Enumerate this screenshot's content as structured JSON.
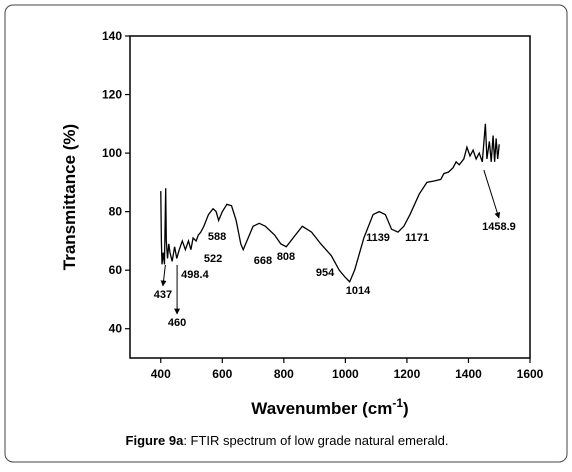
{
  "chart_data": {
    "type": "line",
    "xlabel": "Wavenumber (cm",
    "xlabel_sup": "-1",
    "xlabel_end": ")",
    "ylabel": "Transmittance (%)",
    "caption_label": "Figure 9a",
    "caption_text": ": FTIR spectrum of low grade natural emerald.",
    "xlim": [
      300,
      1600
    ],
    "ylim": [
      30,
      140
    ],
    "xticks": [
      400,
      600,
      800,
      1000,
      1200,
      1400,
      1600
    ],
    "yticks": [
      40,
      60,
      80,
      100,
      120,
      140
    ],
    "series": [
      {
        "color": "#000000",
        "x": [
          400,
          402,
          404,
          408,
          412,
          416,
          418,
          422,
          426,
          430,
          437,
          445,
          452,
          460,
          470,
          480,
          490,
          498,
          505,
          515,
          522,
          530,
          540,
          555,
          570,
          580,
          588,
          600,
          615,
          630,
          645,
          660,
          668,
          680,
          700,
          720,
          740,
          770,
          790,
          808,
          830,
          860,
          890,
          920,
          954,
          980,
          1000,
          1014,
          1030,
          1060,
          1090,
          1110,
          1130,
          1150,
          1171,
          1190,
          1210,
          1240,
          1265,
          1290,
          1310,
          1320,
          1335,
          1350,
          1360,
          1370,
          1385,
          1395,
          1405,
          1415,
          1425,
          1435,
          1445,
          1455,
          1460,
          1468,
          1474,
          1480,
          1485,
          1490,
          1495,
          1500
        ],
        "values": [
          87,
          70,
          62,
          66,
          62,
          88,
          70,
          64,
          69,
          66,
          63,
          68,
          64,
          67,
          70,
          67,
          70,
          67,
          71,
          70,
          72,
          73,
          75,
          79,
          81,
          80,
          77,
          80,
          82.5,
          82,
          77,
          69,
          67,
          70,
          75,
          76,
          75,
          72,
          69,
          68,
          71,
          75,
          73,
          69,
          65,
          60,
          57.5,
          56,
          60,
          71,
          79,
          80,
          79,
          74,
          73,
          75,
          79,
          86,
          90,
          90.5,
          91,
          93,
          93.5,
          95,
          97,
          96,
          98,
          102,
          99,
          101,
          98,
          100,
          97,
          110,
          98,
          104,
          97,
          106,
          97,
          105,
          98,
          103
        ]
      }
    ],
    "annotations": [
      {
        "text": "437",
        "x": 407,
        "y": 51.9,
        "arrow": [
          415,
          61.8
        ]
      },
      {
        "text": "460",
        "x": 453,
        "y": 42.3,
        "arrow": [
          453,
          61.8
        ]
      },
      {
        "text": "498.4",
        "x": 511,
        "y": 58.7
      },
      {
        "text": "522",
        "x": 570,
        "y": 64.2
      },
      {
        "text": "588",
        "x": 583,
        "y": 71.7
      },
      {
        "text": "668",
        "x": 732,
        "y": 63.5
      },
      {
        "text": "808",
        "x": 807,
        "y": 64.8
      },
      {
        "text": "954",
        "x": 934,
        "y": 59.4
      },
      {
        "text": "1014",
        "x": 1041,
        "y": 53.2
      },
      {
        "text": "1139",
        "x": 1106,
        "y": 71.3
      },
      {
        "text": "1171",
        "x": 1233,
        "y": 71.3
      },
      {
        "text": "1458.9",
        "x": 1499,
        "y": 75.1,
        "arrow": [
          1450,
          94.2
        ]
      }
    ]
  }
}
